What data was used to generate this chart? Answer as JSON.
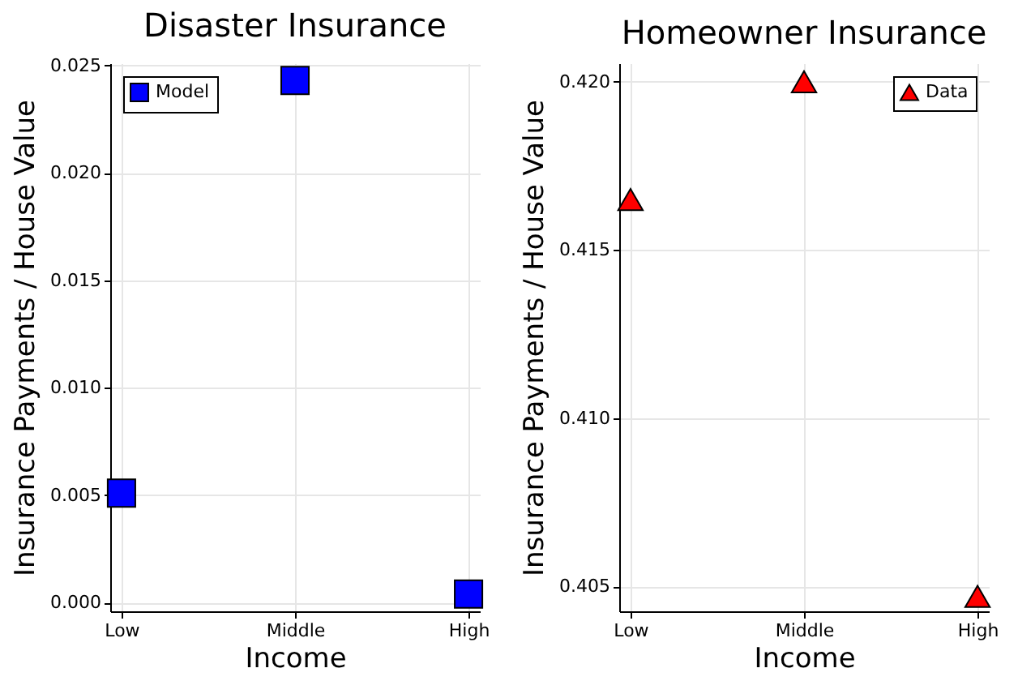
{
  "chart_data": [
    {
      "type": "scatter",
      "title": "Disaster Insurance",
      "xlabel": "Income",
      "ylabel": "Insurance Payments / House Value",
      "categories": [
        "Low",
        "Middle",
        "High"
      ],
      "series": [
        {
          "name": "Model",
          "color": "#0000ff",
          "values": [
            0.0051,
            0.0243,
            0.0004
          ]
        }
      ],
      "marker": "square",
      "ylim": [
        -0.0004,
        0.0251
      ],
      "yticks": [
        {
          "value": 0,
          "label": "0.000"
        },
        {
          "value": 0.005,
          "label": "0.005"
        },
        {
          "value": 0.01,
          "label": "0.010"
        },
        {
          "value": 0.015,
          "label": "0.015"
        },
        {
          "value": 0.02,
          "label": "0.020"
        },
        {
          "value": 0.025,
          "label": "0.025"
        }
      ],
      "grid": true,
      "legend": "top left"
    },
    {
      "type": "scatter",
      "title": "Homeowner Insurance",
      "xlabel": "Income",
      "ylabel": "Insurance Payments / House Value",
      "categories": [
        "Low",
        "Middle",
        "High"
      ],
      "series": [
        {
          "name": "Data",
          "color": "#ff0000",
          "values": [
            0.4165,
            0.42,
            0.4047
          ]
        }
      ],
      "marker": "triangle",
      "ylim": [
        0.40426,
        0.42055
      ],
      "yticks": [
        {
          "value": 0.405,
          "label": "0.405"
        },
        {
          "value": 0.41,
          "label": "0.410"
        },
        {
          "value": 0.415,
          "label": "0.415"
        },
        {
          "value": 0.42,
          "label": "0.420"
        }
      ],
      "grid": true,
      "legend": "top right"
    }
  ]
}
